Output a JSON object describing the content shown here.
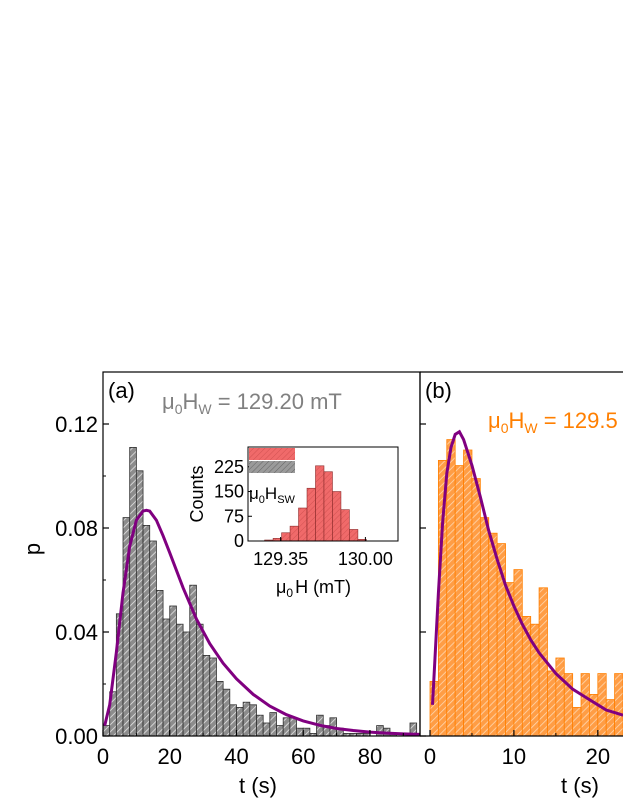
{
  "colors": {
    "gray_fill": "#8c8c8c",
    "gray_edge": "#2e2e2e",
    "orange_fill": "#ff9d45",
    "orange_edge": "#ff7f00",
    "red_fill": "#f06a6a",
    "red_edge": "#8b2a2a",
    "fit_curve": "#800080",
    "title_gray": "#808080",
    "title_orange": "#ff7f00"
  },
  "chart_data": [
    {
      "type": "bar",
      "panel_label": "(a)",
      "title_mu": "μ",
      "title_sub0": "0",
      "title_H": "H",
      "title_subW": "W",
      "title_rest": " = 129.20 mT",
      "xlabel": "t (s)",
      "ylabel": "p",
      "xlim": [
        0,
        95
      ],
      "ylim": [
        0,
        0.14
      ],
      "xticks": [
        "0",
        "20",
        "40",
        "60",
        "80"
      ],
      "yticks": [
        "0.00",
        "0.04",
        "0.08",
        "0.12"
      ],
      "bin_width": 2,
      "bin_start": 0,
      "values": [
        0.004,
        0.017,
        0.047,
        0.084,
        0.111,
        0.102,
        0.081,
        0.075,
        0.056,
        0.045,
        0.05,
        0.043,
        0.04,
        0.058,
        0.043,
        0.031,
        0.03,
        0.021,
        0.018,
        0.012,
        0.011,
        0.013,
        0.012,
        0.008,
        0.005,
        0.009,
        0.004,
        0.007,
        0.007,
        0.003,
        0.003,
        0.001,
        0.008,
        0.004,
        0.007,
        0.003,
        0.001,
        0.001,
        0.001,
        0.001,
        0.0,
        0.004,
        0.003,
        0.001,
        0.0,
        0.0,
        0.005
      ],
      "fit_curve": {
        "name": "fit",
        "x": [
          0.5,
          2,
          4,
          6,
          8,
          10,
          12,
          13,
          14,
          16,
          18,
          20,
          24,
          28,
          32,
          36,
          40,
          45,
          50,
          55,
          60,
          65,
          70,
          75,
          80,
          85,
          90,
          95
        ],
        "y": [
          0.004,
          0.012,
          0.032,
          0.055,
          0.073,
          0.083,
          0.0865,
          0.0868,
          0.0865,
          0.083,
          0.077,
          0.0705,
          0.057,
          0.045,
          0.0355,
          0.028,
          0.022,
          0.016,
          0.0115,
          0.0082,
          0.0058,
          0.0041,
          0.0029,
          0.0021,
          0.0015,
          0.0011,
          0.0008,
          0.0006
        ]
      },
      "inset": {
        "type": "bar",
        "xlabel_mu": "μ",
        "xlabel_sub0": "0",
        "xlabel_rest": "H (mT)",
        "ylabel": "Counts",
        "yticks": [
          "0",
          "75",
          "150",
          "225"
        ],
        "xticks": [
          "129.35",
          "130.00"
        ],
        "xlim": [
          129.1,
          130.25
        ],
        "ylim": [
          0,
          285
        ],
        "bin_width": 0.065,
        "bin_centers": [
          129.26,
          129.325,
          129.39,
          129.455,
          129.52,
          129.585,
          129.65,
          129.715,
          129.78,
          129.845,
          129.91,
          129.975
        ],
        "values": [
          3,
          8,
          25,
          45,
          100,
          160,
          228,
          210,
          150,
          95,
          35,
          5
        ],
        "legend": {
          "mu": "μ",
          "sub0": "0",
          "H": "H",
          "subSW": "SW"
        }
      }
    },
    {
      "type": "bar",
      "panel_label": "(b)",
      "title_mu": "μ",
      "title_sub0": "0",
      "title_H": "H",
      "title_subW": "W",
      "title_rest": " = 129.5",
      "xlabel": "t (s)",
      "xlim": [
        0,
        23
      ],
      "xticks": [
        "0",
        "10",
        "20"
      ],
      "bin_width": 1,
      "bin_start": 0,
      "values": [
        0.021,
        0.106,
        0.114,
        0.104,
        0.11,
        0.099,
        0.084,
        0.078,
        0.074,
        0.059,
        0.064,
        0.046,
        0.043,
        0.057,
        0.025,
        0.03,
        0.024,
        0.011,
        0.024,
        0.016,
        0.024,
        0.014,
        0.024
      ],
      "fit_curve": {
        "name": "fit",
        "x": [
          0.3,
          0.6,
          1,
          1.5,
          2,
          2.5,
          3,
          3.5,
          4,
          5,
          6,
          7,
          8,
          9,
          10,
          11,
          12,
          13,
          14,
          15,
          16,
          17,
          18,
          19,
          20,
          21,
          22,
          23
        ],
        "y": [
          0.012,
          0.03,
          0.055,
          0.082,
          0.101,
          0.111,
          0.116,
          0.117,
          0.114,
          0.104,
          0.092,
          0.079,
          0.068,
          0.058,
          0.05,
          0.043,
          0.037,
          0.032,
          0.028,
          0.024,
          0.021,
          0.018,
          0.016,
          0.014,
          0.012,
          0.01,
          0.009,
          0.008
        ]
      }
    }
  ]
}
